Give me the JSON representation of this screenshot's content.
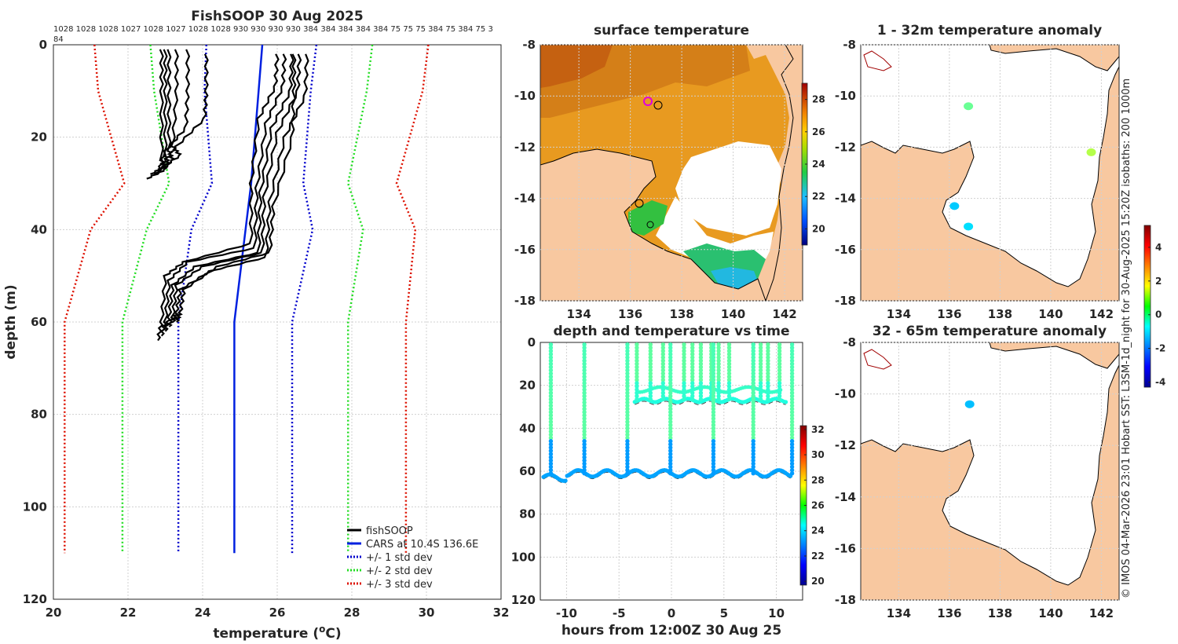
{
  "chart_data": [
    {
      "type": "line",
      "title": "FishSOOP 30 Aug 2025",
      "xlabel": "temperature (°C)",
      "ylabel": "depth (m)",
      "xlim": [
        20,
        32
      ],
      "ylim": [
        120,
        0
      ],
      "xticks": [
        "20",
        "22",
        "24",
        "26",
        "28",
        "30",
        "32"
      ],
      "yticks": [
        "0",
        "20",
        "40",
        "60",
        "80",
        "100",
        "120"
      ],
      "top_annotation_line1": "1028 1028 1028 1027 1028 1027 1028 1028 930 930 930 930 384 384 384 384 384 75 75 75 384 75 384 75 3",
      "top_annotation_line2": "84",
      "legend": [
        "fishSOOP",
        "CARS at 10.4S 136.6E",
        "+/- 1 std dev",
        "+/- 2 std dev",
        "+/- 3 std dev"
      ],
      "series": [
        {
          "name": "CARS at 10.4S 136.6E",
          "x": [
            25.6,
            25.5,
            25.3,
            24.85,
            24.85
          ],
          "y": [
            0,
            10,
            30,
            60,
            110
          ]
        },
        {
          "name": "+1 std dev",
          "x": [
            27.05,
            26.9,
            26.7,
            26.95,
            26.4,
            26.4
          ],
          "y": [
            0,
            10,
            30,
            40,
            60,
            110
          ]
        },
        {
          "name": "-1 std dev",
          "x": [
            24.1,
            24.05,
            24.25,
            23.7,
            23.35,
            23.35
          ],
          "y": [
            0,
            10,
            30,
            40,
            60,
            110
          ]
        },
        {
          "name": "+2 std dev",
          "x": [
            28.55,
            28.4,
            27.9,
            28.3,
            27.9,
            27.9
          ],
          "y": [
            0,
            10,
            30,
            40,
            60,
            110
          ]
        },
        {
          "name": "-2 std dev",
          "x": [
            22.6,
            22.7,
            23.1,
            22.5,
            21.85,
            21.85
          ],
          "y": [
            0,
            10,
            30,
            40,
            60,
            110
          ]
        },
        {
          "name": "+3 std dev",
          "x": [
            30.05,
            29.9,
            29.2,
            29.7,
            29.45,
            29.45
          ],
          "y": [
            0,
            10,
            30,
            40,
            60,
            110
          ]
        },
        {
          "name": "-3 std dev",
          "x": [
            21.1,
            21.2,
            21.9,
            21.0,
            20.3,
            20.3
          ],
          "y": [
            0,
            10,
            30,
            40,
            60,
            110
          ]
        }
      ],
      "fishsoop_profiles": [
        {
          "x": [
            22.9,
            22.9,
            22.9,
            23.0,
            22.5
          ],
          "y": [
            1,
            10,
            25,
            27,
            29
          ]
        },
        {
          "x": [
            23.0,
            23.0,
            23.0,
            23.1,
            22.6
          ],
          "y": [
            1,
            10,
            24,
            26,
            28
          ]
        },
        {
          "x": [
            23.1,
            23.1,
            23.1,
            23.2,
            22.7
          ],
          "y": [
            1,
            11,
            23,
            25,
            28
          ]
        },
        {
          "x": [
            23.3,
            23.3,
            23.2,
            23.4,
            22.8
          ],
          "y": [
            1,
            10,
            22,
            24,
            27
          ]
        },
        {
          "x": [
            24.1,
            24.1,
            24.05,
            23.3,
            22.9
          ],
          "y": [
            2,
            10,
            16,
            22,
            26
          ]
        },
        {
          "x": [
            23.6,
            23.6,
            23.55,
            23.0,
            22.8
          ],
          "y": [
            1,
            10,
            18,
            23,
            28
          ]
        },
        {
          "x": [
            26.0,
            25.95,
            25.5,
            25.3,
            25.3,
            23.5,
            23.0,
            22.9,
            22.8
          ],
          "y": [
            2,
            9,
            16,
            30,
            43,
            47,
            50,
            60,
            64
          ]
        },
        {
          "x": [
            26.2,
            26.15,
            25.7,
            25.45,
            25.4,
            23.6,
            23.1,
            23.0,
            22.9
          ],
          "y": [
            2,
            9,
            17,
            31,
            44,
            47,
            51,
            60,
            63
          ]
        },
        {
          "x": [
            26.4,
            26.35,
            25.85,
            25.55,
            25.5,
            23.8,
            23.2,
            23.1,
            23.0
          ],
          "y": [
            2,
            10,
            18,
            32,
            45,
            48,
            52,
            59,
            62
          ]
        },
        {
          "x": [
            26.6,
            26.55,
            26.0,
            25.65,
            25.6,
            24.0,
            23.3,
            23.2,
            23.1
          ],
          "y": [
            2,
            10,
            19,
            33,
            45,
            48,
            52,
            59,
            61
          ]
        },
        {
          "x": [
            26.8,
            26.75,
            26.2,
            25.8,
            25.7,
            24.2,
            23.4,
            23.3,
            23.2
          ],
          "y": [
            2,
            11,
            20,
            34,
            46,
            49,
            53,
            58,
            60
          ]
        },
        {
          "x": [
            26.45,
            26.45,
            26.4,
            25.9,
            25.8,
            24.4,
            23.5,
            23.4,
            23.3
          ],
          "y": [
            2,
            10,
            20,
            35,
            45,
            48,
            53,
            58,
            60
          ]
        }
      ]
    },
    {
      "type": "heatmap",
      "title": "surface temperature",
      "xticks": [
        "134",
        "136",
        "138",
        "140",
        "142"
      ],
      "yticks": [
        "-8",
        "-10",
        "-12",
        "-14",
        "-16",
        "-18"
      ],
      "xlim": [
        132.5,
        142.7
      ],
      "ylim": [
        -18,
        -8
      ],
      "colorbar": {
        "min": 19,
        "max": 29,
        "ticks": [
          "20",
          "22",
          "24",
          "26",
          "28"
        ]
      }
    },
    {
      "type": "scatter",
      "title": "depth and temperature vs time",
      "xlabel": "hours from 12:00Z 30 Aug 25",
      "xlim": [
        -12.5,
        12.5
      ],
      "ylim": [
        120,
        0
      ],
      "xticks": [
        "-10",
        "-5",
        "0",
        "5",
        "10"
      ],
      "yticks": [
        "0",
        "20",
        "40",
        "60",
        "80",
        "100",
        "120"
      ],
      "colorbar": {
        "min": 19.7,
        "max": 32.3,
        "ticks": [
          "20",
          "22",
          "24",
          "26",
          "28",
          "30",
          "32"
        ]
      },
      "shallow_casts_hours": [
        -3.3,
        -2.0,
        -0.8,
        1.2,
        2.0,
        2.8,
        3.8,
        4.5,
        5.5,
        7.8,
        8.5,
        9.2,
        10.3
      ],
      "deep_casts_hours": [
        -11.5,
        -8.3,
        -4.2,
        -0.1,
        4.0,
        7.8,
        11.5
      ],
      "shallow_depth_m": 27,
      "deep_depth_m": 61
    },
    {
      "type": "scatter",
      "title": "1 - 32m temperature anomaly",
      "xticks": [
        "134",
        "136",
        "138",
        "140",
        "142"
      ],
      "yticks": [
        "-8",
        "-10",
        "-12",
        "-14",
        "-16",
        "-18"
      ],
      "points": [
        {
          "lon": 136.75,
          "lat": -10.4,
          "anomaly": 0.3
        },
        {
          "lon": 136.2,
          "lat": -14.3,
          "anomaly": -1.2
        },
        {
          "lon": 136.75,
          "lat": -15.1,
          "anomaly": -1.0
        },
        {
          "lon": 141.6,
          "lat": -12.2,
          "anomaly": 1.0
        }
      ]
    },
    {
      "type": "scatter",
      "title": "32 - 65m temperature anomaly",
      "xticks": [
        "134",
        "136",
        "138",
        "140",
        "142"
      ],
      "yticks": [
        "-8",
        "-10",
        "-12",
        "-14",
        "-16",
        "-18"
      ],
      "points": [
        {
          "lon": 136.8,
          "lat": -10.4,
          "anomaly": -1.3
        }
      ],
      "colorbar": {
        "min": -4.3,
        "max": 5.3,
        "ticks": [
          "-4",
          "-2",
          "0",
          "2",
          "4"
        ]
      }
    }
  ],
  "side_caption": "© IMOS 04-Mar-2026 23:01 Hobart SST: L3SM-1d_night for 30-Aug-2025 15:20Z isobaths: 200  1000m",
  "colors": {
    "land": "#f8c8a0",
    "axis": "#262626",
    "cars": "#0020e0",
    "sd1": "#0000cc",
    "sd2": "#22dd22",
    "sd3": "#dd1100"
  }
}
